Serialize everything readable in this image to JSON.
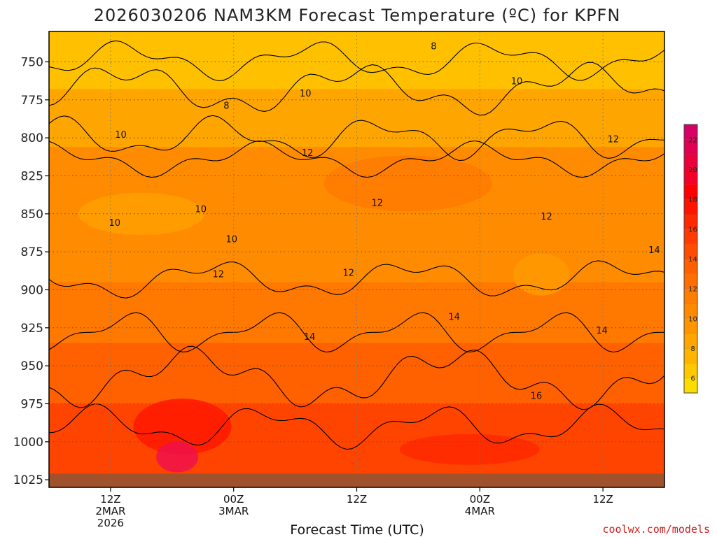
{
  "chart_data": {
    "type": "heatmap",
    "title": "2026030206 NAM3KM Forecast Temperature (ºC) for KPFN",
    "xlabel": "Forecast Time (UTC)",
    "ylabel": "",
    "x_unit": "forecast hour",
    "x_range": [
      6,
      66
    ],
    "y_range": [
      730,
      1030
    ],
    "y_inverted": true,
    "y_ticks": [
      750,
      775,
      800,
      825,
      850,
      875,
      900,
      925,
      950,
      975,
      1000,
      1025
    ],
    "x_ticks": [
      {
        "hour": 12,
        "lines": [
          "12Z",
          "2MAR",
          "2026"
        ]
      },
      {
        "hour": 24,
        "lines": [
          "00Z",
          "3MAR"
        ]
      },
      {
        "hour": 36,
        "lines": [
          "12Z"
        ]
      },
      {
        "hour": 48,
        "lines": [
          "00Z",
          "4MAR"
        ]
      },
      {
        "hour": 60,
        "lines": [
          "12Z"
        ]
      }
    ],
    "grid": true,
    "colorbar": {
      "ticks": [
        6,
        8,
        10,
        12,
        14,
        16,
        18,
        20,
        22
      ],
      "levels": [
        5,
        6,
        7,
        8,
        9,
        10,
        11,
        12,
        13,
        14,
        15,
        16,
        17,
        18,
        19,
        20,
        21,
        22,
        23
      ],
      "colors": [
        "#ffdc00",
        "#ffc800",
        "#ffb400",
        "#ffa500",
        "#ff9600",
        "#ff8a00",
        "#ff7d00",
        "#ff6e00",
        "#ff5f00",
        "#ff4c00",
        "#ff3a00",
        "#ff2800",
        "#ff1400",
        "#ff0000",
        "#f50028",
        "#eb003c",
        "#e10050",
        "#d70064"
      ]
    },
    "contour_labels": [
      {
        "value": "8",
        "x": 43.5,
        "y": 740
      },
      {
        "value": "8",
        "x": 23.3,
        "y": 779
      },
      {
        "value": "10",
        "x": 13.0,
        "y": 798
      },
      {
        "value": "10",
        "x": 31.0,
        "y": 771
      },
      {
        "value": "10",
        "x": 51.6,
        "y": 763
      },
      {
        "value": "10",
        "x": 20.8,
        "y": 847
      },
      {
        "value": "10",
        "x": 12.4,
        "y": 856
      },
      {
        "value": "10",
        "x": 23.8,
        "y": 867
      },
      {
        "value": "12",
        "x": 31.2,
        "y": 810
      },
      {
        "value": "12",
        "x": 61.0,
        "y": 801
      },
      {
        "value": "12",
        "x": 38.0,
        "y": 843
      },
      {
        "value": "12",
        "x": 54.5,
        "y": 852
      },
      {
        "value": "12",
        "x": 22.5,
        "y": 890
      },
      {
        "value": "12",
        "x": 35.2,
        "y": 889
      },
      {
        "value": "14",
        "x": 65.0,
        "y": 874
      },
      {
        "value": "14",
        "x": 45.5,
        "y": 918
      },
      {
        "value": "14",
        "x": 31.4,
        "y": 931
      },
      {
        "value": "14",
        "x": 59.9,
        "y": 927
      },
      {
        "value": "16",
        "x": 53.5,
        "y": 970
      }
    ],
    "surface_pressure": 1021
  },
  "credit": "coolwx.com/models"
}
